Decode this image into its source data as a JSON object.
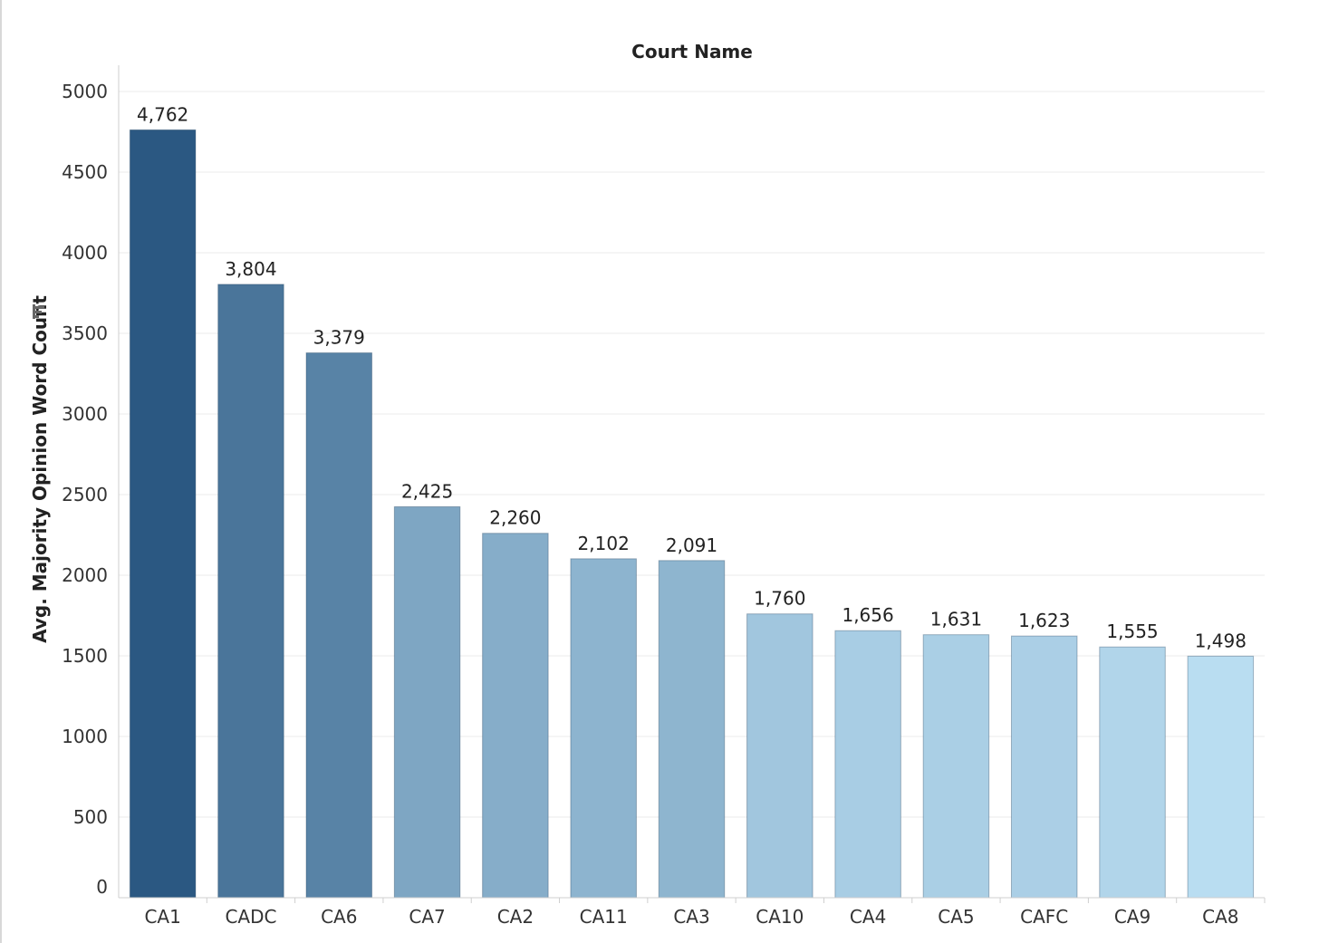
{
  "chart_data": {
    "type": "bar",
    "title": "Court Name",
    "xlabel": "",
    "ylabel": "Avg. Majority Opinion Word Count",
    "ylim": [
      0,
      5000
    ],
    "yticks": [
      0,
      500,
      1000,
      1500,
      2000,
      2500,
      3000,
      3500,
      4000,
      4500,
      5000
    ],
    "categories": [
      "CA1",
      "CADC",
      "CA6",
      "CA7",
      "CA2",
      "CA11",
      "CA3",
      "CA10",
      "CA4",
      "CA5",
      "CAFC",
      "CA9",
      "CA8"
    ],
    "values": [
      4762,
      3804,
      3379,
      2425,
      2260,
      2102,
      2091,
      1760,
      1656,
      1631,
      1623,
      1555,
      1498
    ],
    "value_labels": [
      "4,762",
      "3,804",
      "3,379",
      "2,425",
      "2,260",
      "2,102",
      "2,091",
      "1,760",
      "1,656",
      "1,631",
      "1,623",
      "1,555",
      "1,498"
    ],
    "colors": {
      "high": "#2b5882",
      "low": "#b9ddf1",
      "grid": "#ebebeb",
      "axis": "#cfcfcf"
    },
    "grid": true,
    "sort_icon": "sort-descending-icon"
  }
}
